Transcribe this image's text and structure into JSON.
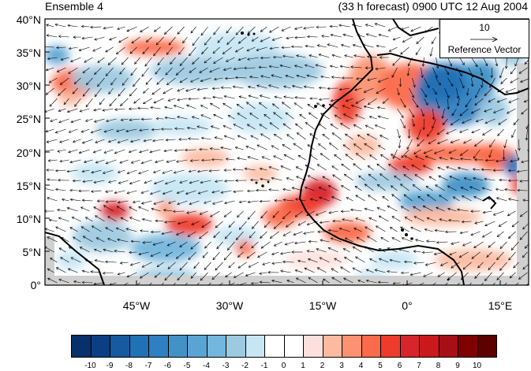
{
  "title_left": "Ensemble 4",
  "title_right": "(33 h forecast) 0900 UTC 12 Aug 2004",
  "y_ticks": [
    "40°N",
    "35°N",
    "30°N",
    "25°N",
    "20°N",
    "15°N",
    "10°N",
    "5°N",
    "0°"
  ],
  "x_ticks": [
    "45°W",
    "30°W",
    "15°W",
    "0°",
    "15°E"
  ],
  "reference_vector": {
    "value": "10",
    "label": "Reference Vector"
  },
  "colorbar": {
    "labels": [
      "-10",
      "-9",
      "-8",
      "-7",
      "-6",
      "-5",
      "-4",
      "-3",
      "-2",
      "-1",
      "0",
      "1",
      "2",
      "3",
      "4",
      "5",
      "6",
      "7",
      "8",
      "9",
      "10"
    ],
    "colors": [
      "#08306b",
      "#0b3f82",
      "#165aa0",
      "#2171b5",
      "#2f7fc1",
      "#4292c6",
      "#5aa4d3",
      "#74b6dc",
      "#9ecae1",
      "#c6e6f4",
      "#ffffff",
      "#ffffff",
      "#fde0dd",
      "#fcbba1",
      "#fc9272",
      "#fb6a4a",
      "#ef3b2c",
      "#d7252b",
      "#cb181d",
      "#a50f15",
      "#7f0000",
      "#5c0000"
    ]
  },
  "map": {
    "lon_range": [
      -58,
      20
    ],
    "lat_range": [
      0,
      40
    ],
    "colors": {
      "land": "#d0d0d0",
      "coast": "#000000"
    }
  }
}
